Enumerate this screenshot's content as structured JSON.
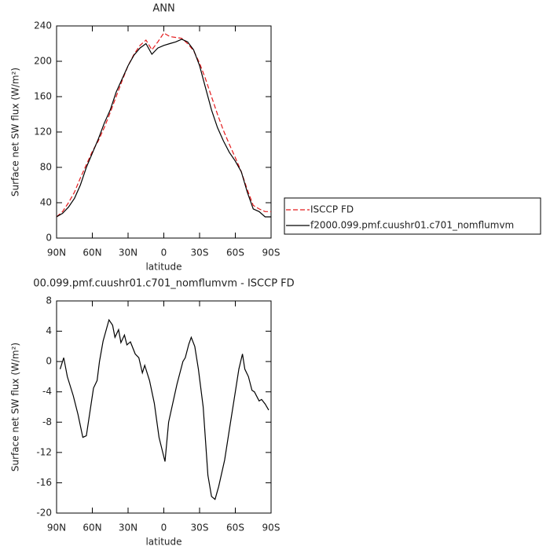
{
  "chart_data": [
    {
      "type": "line",
      "title": "ANN",
      "xlabel": "latitude",
      "ylabel": "Surface net SW flux (W/m²)",
      "x": [
        90,
        85,
        80,
        75,
        70,
        65,
        60,
        55,
        50,
        45,
        40,
        35,
        30,
        25,
        20,
        15,
        10,
        5,
        0,
        -5,
        -10,
        -15,
        -20,
        -25,
        -30,
        -35,
        -40,
        -45,
        -50,
        -55,
        -60,
        -65,
        -70,
        -75,
        -80,
        -85,
        -90
      ],
      "series": [
        {
          "name": "ISCCP FD",
          "color": "#e41a1c",
          "dash": true,
          "values": [
            24,
            30,
            40,
            52,
            68,
            83,
            98,
            110,
            125,
            142,
            160,
            178,
            195,
            208,
            218,
            224,
            213,
            222,
            232,
            228,
            227,
            226,
            220,
            212,
            198,
            180,
            160,
            140,
            122,
            106,
            91,
            75,
            55,
            37,
            33,
            30,
            30
          ]
        },
        {
          "name": "f2000.099.pmf.cuushr01.c701_nomflumvm",
          "color": "#000000",
          "dash": false,
          "values": [
            24,
            28,
            35,
            45,
            60,
            80,
            96,
            112,
            130,
            145,
            165,
            180,
            195,
            207,
            215,
            220,
            208,
            215,
            218,
            220,
            222,
            225,
            222,
            213,
            195,
            170,
            145,
            125,
            110,
            97,
            87,
            75,
            52,
            33,
            30,
            24,
            24
          ]
        }
      ],
      "xlim": [
        90,
        -90
      ],
      "xticks": [
        {
          "value": 90,
          "label": "90N"
        },
        {
          "value": 60,
          "label": "60N"
        },
        {
          "value": 30,
          "label": "30N"
        },
        0,
        {
          "value": -30,
          "label": "30S"
        },
        {
          "value": -60,
          "label": "60S"
        },
        {
          "value": -90,
          "label": "90S"
        }
      ],
      "ylim": [
        0,
        240
      ],
      "yticks": [
        0,
        40,
        80,
        120,
        160,
        200,
        240
      ],
      "legend": "right"
    },
    {
      "type": "line",
      "title": "00.099.pmf.cuushr01.c701_nomflumvm - ISCCP FD",
      "xlabel": "latitude",
      "ylabel": "Surface net SW flux (W/m²)",
      "x": [
        87,
        84,
        81,
        76,
        72,
        68,
        65,
        59,
        56,
        54,
        51,
        46,
        43,
        41,
        38,
        36,
        33,
        31,
        28,
        24,
        21,
        18,
        16,
        12,
        8,
        4,
        -1,
        -4,
        -11,
        -16,
        -18,
        -21,
        -23,
        -26,
        -29,
        -33,
        -37,
        -40,
        -43,
        -46,
        -51,
        -55,
        -60,
        -63,
        -66,
        -68,
        -71,
        -74,
        -76,
        -80,
        -82,
        -85,
        -88
      ],
      "series": [
        {
          "color": "#000000",
          "dash": false,
          "values": [
            -1,
            0.5,
            -2,
            -4.5,
            -7,
            -10,
            -9.8,
            -3.5,
            -2.5,
            0,
            2.7,
            5.5,
            4.8,
            3.2,
            4.2,
            2.5,
            3.5,
            2.2,
            2.6,
            1,
            0.5,
            -1.5,
            -0.5,
            -2.5,
            -5.5,
            -10,
            -13.2,
            -8,
            -3,
            0,
            0.5,
            2.3,
            3.2,
            2,
            -1,
            -6,
            -15,
            -17.8,
            -18.2,
            -16.5,
            -13,
            -9,
            -4,
            -1,
            1,
            -1,
            -2,
            -3.8,
            -4,
            -5.2,
            -5,
            -5.6,
            -6.4
          ]
        }
      ],
      "xlim": [
        90,
        -90
      ],
      "xticks": [
        {
          "value": 90,
          "label": "90N"
        },
        {
          "value": 60,
          "label": "60N"
        },
        {
          "value": 30,
          "label": "30N"
        },
        0,
        {
          "value": -30,
          "label": "30S"
        },
        {
          "value": -60,
          "label": "60S"
        },
        {
          "value": -90,
          "label": "90S"
        }
      ],
      "ylim": [
        -20,
        8
      ],
      "yticks": [
        -20,
        -16,
        -12,
        -8,
        -4,
        0,
        4,
        8
      ]
    }
  ]
}
